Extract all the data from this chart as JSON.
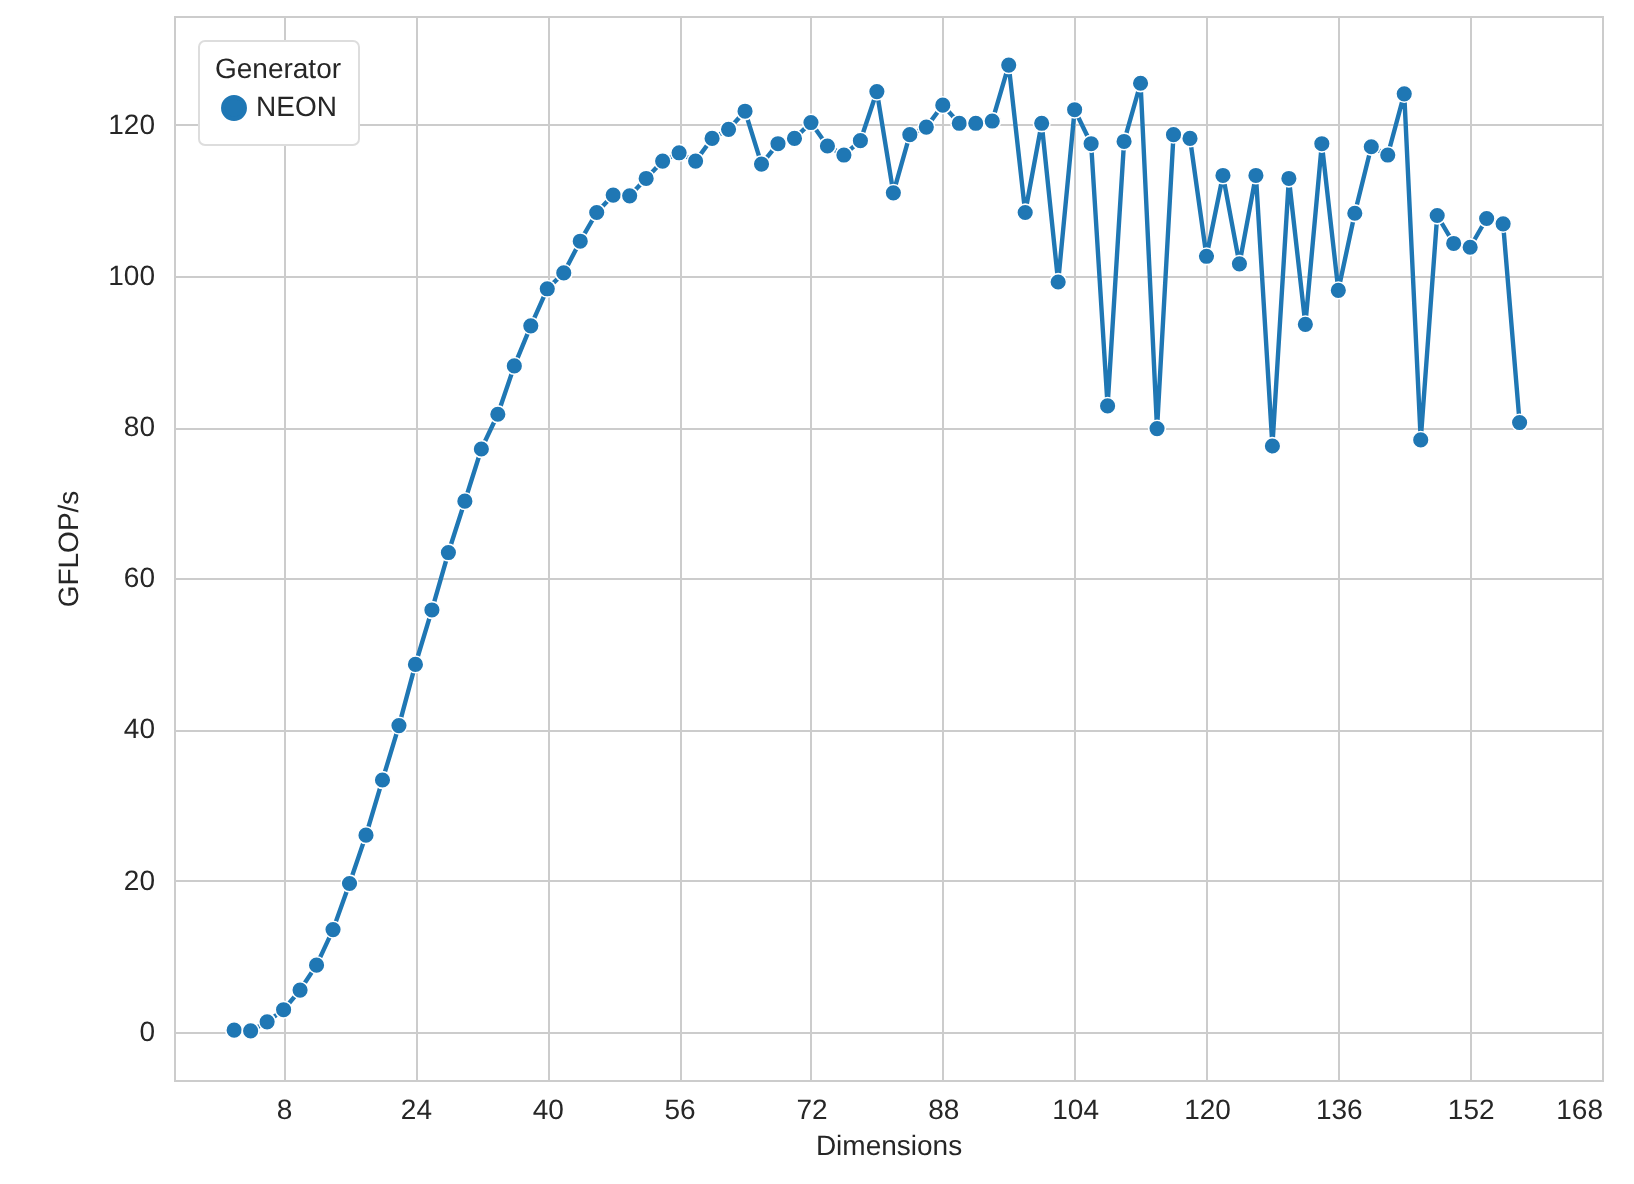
{
  "chart_data": {
    "type": "line",
    "xlabel": "Dimensions",
    "ylabel": "GFLOP/s",
    "legend_title": "Generator",
    "legend": "top left",
    "grid": true,
    "marker": "circle",
    "line_style": "solid",
    "x": [
      2,
      4,
      6,
      8,
      10,
      12,
      14,
      16,
      18,
      20,
      22,
      24,
      26,
      28,
      30,
      32,
      34,
      36,
      38,
      40,
      42,
      44,
      46,
      48,
      50,
      52,
      54,
      56,
      58,
      60,
      62,
      64,
      66,
      68,
      70,
      72,
      74,
      76,
      78,
      80,
      82,
      84,
      86,
      88,
      90,
      92,
      94,
      96,
      98,
      100,
      102,
      104,
      106,
      108,
      110,
      112,
      114,
      116,
      118,
      120,
      122,
      124,
      126,
      128,
      130,
      132,
      134,
      136,
      138,
      140,
      142,
      144,
      146,
      148,
      150,
      152,
      154,
      156,
      158
    ],
    "xlim": [
      -5.3,
      168
    ],
    "xticks": [
      8,
      24,
      40,
      56,
      72,
      88,
      104,
      120,
      136,
      152,
      168
    ],
    "ylim": [
      -6.4,
      134.4
    ],
    "yticks": [
      0,
      20,
      40,
      60,
      80,
      100,
      120
    ],
    "series": [
      {
        "name": "NEON",
        "color": "#1f77b4",
        "values": [
          0.2,
          0.1,
          1.3,
          2.9,
          5.5,
          8.8,
          13.5,
          19.6,
          26.0,
          33.3,
          40.5,
          48.6,
          55.8,
          63.4,
          70.2,
          77.1,
          81.7,
          88.1,
          93.4,
          98.3,
          100.4,
          104.6,
          108.4,
          110.7,
          110.6,
          112.9,
          115.2,
          116.3,
          115.2,
          118.2,
          119.4,
          121.8,
          114.8,
          117.5,
          118.2,
          120.3,
          117.2,
          116.0,
          117.9,
          124.4,
          111.0,
          118.7,
          119.7,
          122.6,
          120.2,
          120.2,
          120.5,
          127.9,
          108.4,
          120.2,
          99.2,
          122.0,
          117.5,
          82.8,
          117.8,
          125.5,
          79.8,
          118.7,
          118.2,
          102.6,
          113.3,
          101.6,
          113.3,
          77.5,
          112.9,
          93.6,
          117.5,
          98.1,
          108.3,
          117.1,
          116.0,
          124.1,
          78.3,
          108.0,
          104.3,
          103.8,
          107.6,
          106.9,
          80.6
        ]
      }
    ]
  }
}
